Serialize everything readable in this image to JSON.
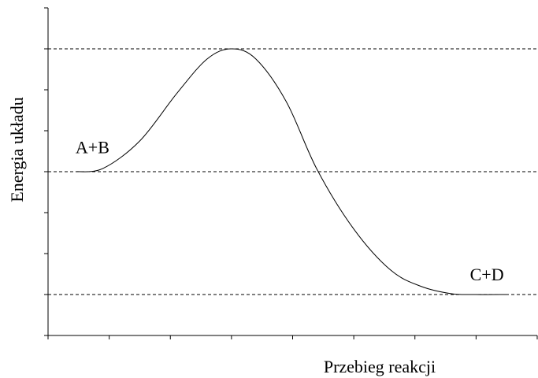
{
  "chart_data": {
    "type": "line",
    "title": "",
    "xlabel": "Przebieg reakcji",
    "ylabel": "Energia układu",
    "xlim": [
      0,
      8
    ],
    "ylim": [
      0,
      8
    ],
    "grid": false,
    "reference_lines": [
      {
        "y": 7
      },
      {
        "y": 4
      },
      {
        "y": 1
      }
    ],
    "annotations": [
      {
        "text": "A+B",
        "x": 0.45,
        "y": 4.45
      },
      {
        "text": "C+D",
        "x": 6.9,
        "y": 1.35
      }
    ],
    "series": [
      {
        "x": [
          0.45,
          0.9,
          1.5,
          2.1,
          2.6,
          3.0,
          3.4,
          3.9,
          4.4,
          5.0,
          5.6,
          6.1,
          6.6,
          7.0,
          7.5
        ],
        "y": [
          4.0,
          4.08,
          4.75,
          5.9,
          6.75,
          7.0,
          6.75,
          5.7,
          4.05,
          2.6,
          1.6,
          1.2,
          1.02,
          1.0,
          1.0
        ]
      }
    ]
  }
}
